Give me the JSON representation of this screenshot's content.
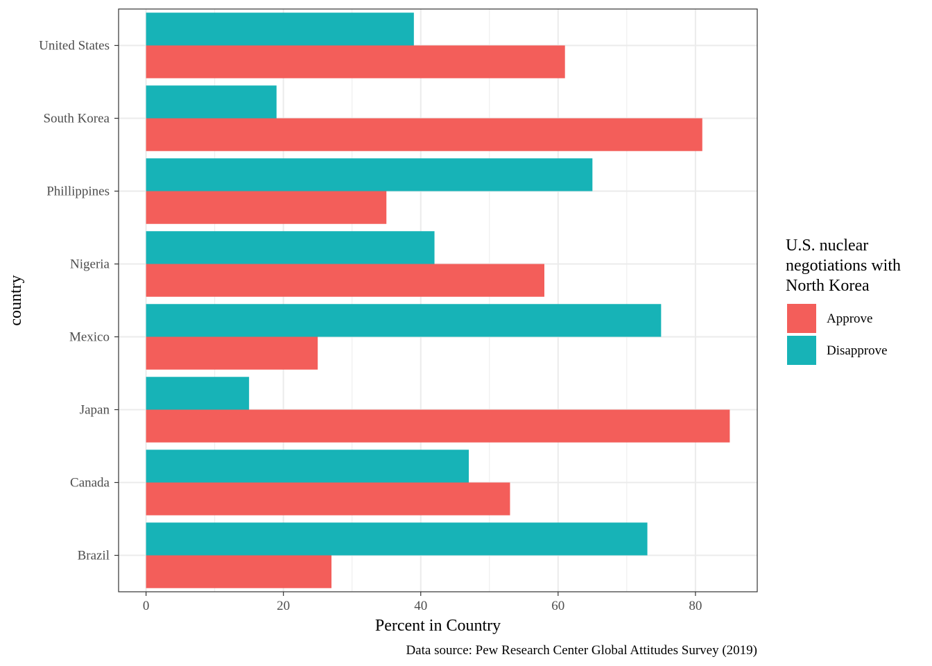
{
  "chart_data": {
    "type": "bar",
    "orientation": "horizontal",
    "categories": [
      "Brazil",
      "Canada",
      "Japan",
      "Mexico",
      "Nigeria",
      "Phillippines",
      "South Korea",
      "United States"
    ],
    "series": [
      {
        "name": "Approve",
        "color": "#F35E5A",
        "values": [
          27,
          53,
          85,
          25,
          58,
          35,
          81,
          61
        ]
      },
      {
        "name": "Disapprove",
        "color": "#17B3B7",
        "values": [
          73,
          47,
          15,
          75,
          42,
          65,
          19,
          39
        ]
      }
    ],
    "xlabel": "Percent in Country",
    "ylabel": "country",
    "xlim": [
      -4,
      89
    ],
    "xticks": [
      0,
      20,
      40,
      60,
      80
    ],
    "grid": true,
    "legend": {
      "title": "U.S. nuclear negotiations with North Korea",
      "title_lines": [
        "U.S. nuclear",
        "negotiations with",
        "North Korea"
      ],
      "position": "right"
    },
    "caption": "Data source: Pew Research Center Global Attitudes Survey (2019)"
  }
}
